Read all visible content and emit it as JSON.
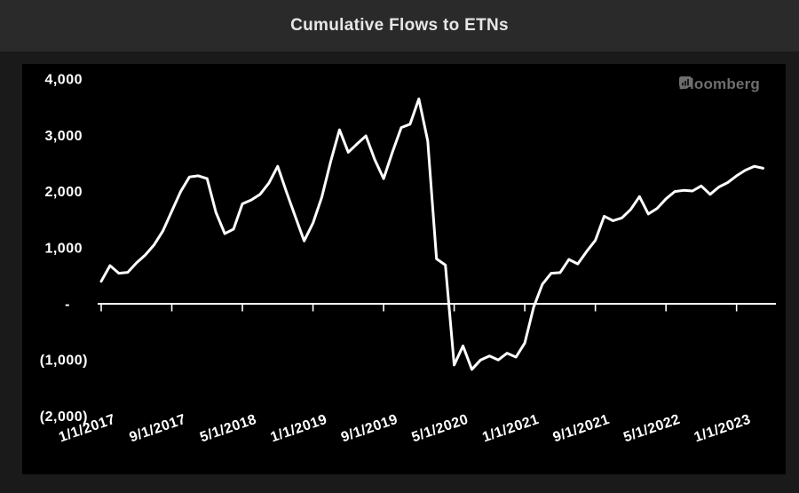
{
  "header": {
    "title": "Cumulative Flows to ETNs"
  },
  "watermark": {
    "brand": "Bloomberg",
    "icon": "bar-chart-icon"
  },
  "colors": {
    "page_bg": "#1a1a1b",
    "header_bg": "#2a2a2b",
    "header_text": "#e7e7e7",
    "panel_bg": "#000000",
    "line": "#ffffff",
    "axis_text": "#ffffff",
    "watermark_text": "#6e6e6e"
  },
  "chart_data": {
    "type": "line",
    "title": "Cumulative Flows to ETNs",
    "frequency": "monthly",
    "x_start": "1/1/2017",
    "x_end": "4/1/2023",
    "x_tick_every_n_months": 8,
    "x_tick_labels": [
      "1/1/2017",
      "9/1/2017",
      "5/1/2018",
      "1/1/2019",
      "9/1/2019",
      "5/1/2020",
      "1/1/2021",
      "9/1/2021",
      "5/1/2022",
      "1/1/2023"
    ],
    "y_tick_labels": [
      "4,000",
      "3,000",
      "2,000",
      "1,000",
      "-",
      "(1,000)",
      "(2,000)"
    ],
    "y_tick_values": [
      4000,
      3000,
      2000,
      1000,
      0,
      -1000,
      -2000
    ],
    "ylim": [
      -2000,
      4000
    ],
    "grid": false,
    "legend": false,
    "line_width": 3,
    "values": [
      400,
      680,
      545,
      560,
      730,
      870,
      1050,
      1300,
      1650,
      2000,
      2260,
      2280,
      2230,
      1630,
      1250,
      1330,
      1780,
      1850,
      1950,
      2150,
      2450,
      1990,
      1550,
      1120,
      1440,
      1900,
      2530,
      3100,
      2700,
      2850,
      2990,
      2570,
      2230,
      2700,
      3140,
      3200,
      3650,
      2900,
      800,
      690,
      -1090,
      -750,
      -1170,
      -1000,
      -930,
      -1000,
      -880,
      -950,
      -700,
      -60,
      350,
      545,
      555,
      790,
      710,
      930,
      1130,
      1560,
      1480,
      1530,
      1680,
      1910,
      1600,
      1700,
      1870,
      2000,
      2020,
      2010,
      2100,
      1950,
      2080,
      2160,
      2280,
      2380,
      2450,
      2415
    ]
  }
}
